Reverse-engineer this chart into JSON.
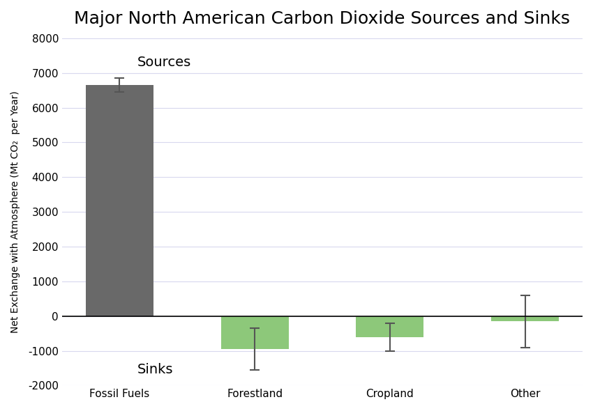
{
  "title": "Major North American Carbon Dioxide Sources and Sinks",
  "categories": [
    "Fossil Fuels",
    "Forestland",
    "Cropland",
    "Other"
  ],
  "values": [
    6650,
    -950,
    -600,
    -150
  ],
  "errors": [
    200,
    600,
    400,
    750
  ],
  "bar_colors": [
    "#696969",
    "#8dc87a",
    "#8dc87a",
    "#8dc87a"
  ],
  "ylabel": "Net Exchange with Atmosphere (Mt CO₂  per Year)",
  "ylim": [
    -2000,
    8000
  ],
  "yticks": [
    -2000,
    -1000,
    0,
    1000,
    2000,
    3000,
    4000,
    5000,
    6000,
    7000,
    8000
  ],
  "sources_label": "Sources",
  "sinks_label": "Sinks",
  "background_color": "#ffffff",
  "grid_color": "#d8d8ee",
  "title_fontsize": 18,
  "tick_fontsize": 11,
  "annotation_fontsize": 14,
  "bar_width": 0.5,
  "error_color": "#555555",
  "zero_line_color": "#000000",
  "x_positions": [
    0,
    1,
    2,
    3
  ]
}
